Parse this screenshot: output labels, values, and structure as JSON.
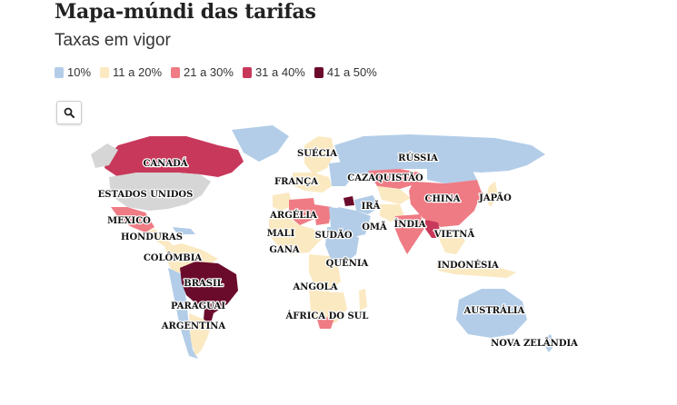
{
  "title": "Mapa-múndi das tarifas",
  "subtitle": "Taxas em vigor",
  "legend": [
    {
      "label": "10%",
      "color": "#b3cde8"
    },
    {
      "label": "11 a 20%",
      "color": "#fbe9c2"
    },
    {
      "label": "21 a 30%",
      "color": "#ef7b84"
    },
    {
      "label": "31 a 40%",
      "color": "#c8385a"
    },
    {
      "label": "41 a 50%",
      "color": "#6b0b2b"
    }
  ],
  "zoom": {
    "icon": "search-icon"
  },
  "colors": {
    "no_data": "#d6d6d6"
  },
  "labels": {
    "canada": "CANADÁ",
    "estados_unidos": "ESTADOS UNIDOS",
    "mexico": "MEXICO",
    "honduras": "HONDURAS",
    "colombia": "COLÔMBIA",
    "brasil": "BRASIL",
    "paraguai": "PARAGUAI",
    "argentina": "ARGENTINA",
    "suecia": "SUÉCIA",
    "russia": "RÚSSIA",
    "franca": "FRANÇA",
    "cazaquistao": "CAZAQUISTÃO",
    "china": "CHINA",
    "japao": "JAPÃO",
    "ira": "IRÃ",
    "argelia": "ARGÉLIA",
    "oma": "OMÃ",
    "india": "ÍNDIA",
    "vietna": "VIETNÃ",
    "mali": "MALI",
    "sudao": "SUDÃO",
    "gana": "GANA",
    "quenia": "QUÊNIA",
    "indonesia": "INDONÉSIA",
    "angola": "ANGOLA",
    "africa_do_sul": "ÁFRICA DO SUL",
    "australia": "AUSTRÁLIA",
    "nova_zelandia": "NOVA ZELÂNDIA"
  }
}
